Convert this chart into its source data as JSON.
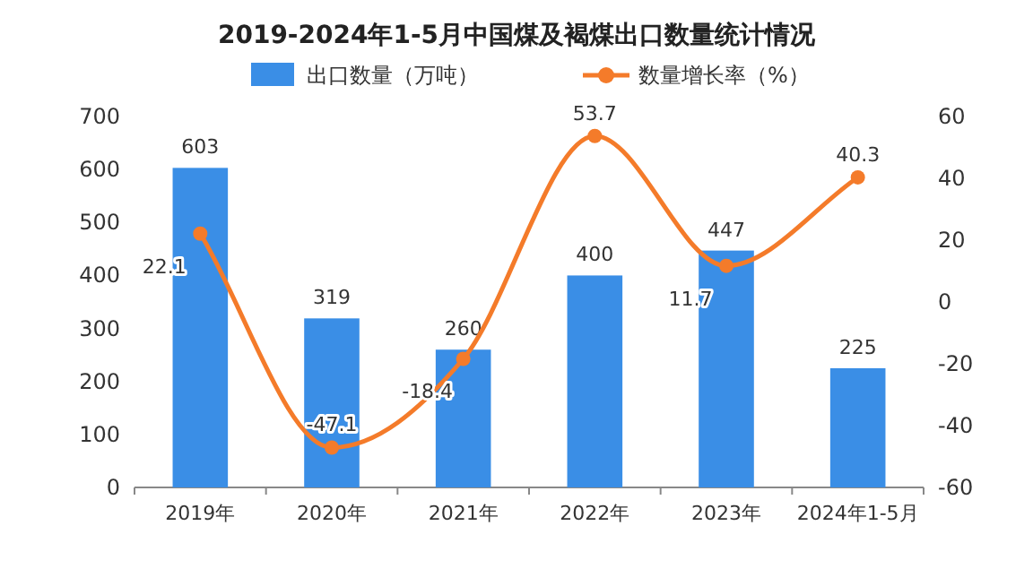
{
  "chart_data": {
    "type": "bar",
    "title": "2019-2024年1-5月中国煤及褐煤出口数量统计情况",
    "categories": [
      "2019年",
      "2020年",
      "2021年",
      "2022年",
      "2023年",
      "2024年1-5月"
    ],
    "series": [
      {
        "name": "出口数量（万吨）",
        "color": "#3a8ee6",
        "values": [
          603,
          319,
          260,
          400,
          447,
          225
        ]
      },
      {
        "name": "数量增长率（%）",
        "type": "line",
        "axis": "y2",
        "color": "#f47b2a",
        "marker": "circle",
        "values": [
          22.1,
          -47.1,
          -18.4,
          53.7,
          11.7,
          40.3
        ]
      }
    ],
    "ylim": [
      0,
      700
    ],
    "yticks": [
      0,
      100,
      200,
      300,
      400,
      500,
      600,
      700
    ],
    "y2lim": [
      -60,
      60
    ],
    "y2ticks": [
      -60,
      -40,
      -20,
      0,
      20,
      40,
      60
    ],
    "data_labels": true,
    "legend": "top",
    "grid": false
  }
}
